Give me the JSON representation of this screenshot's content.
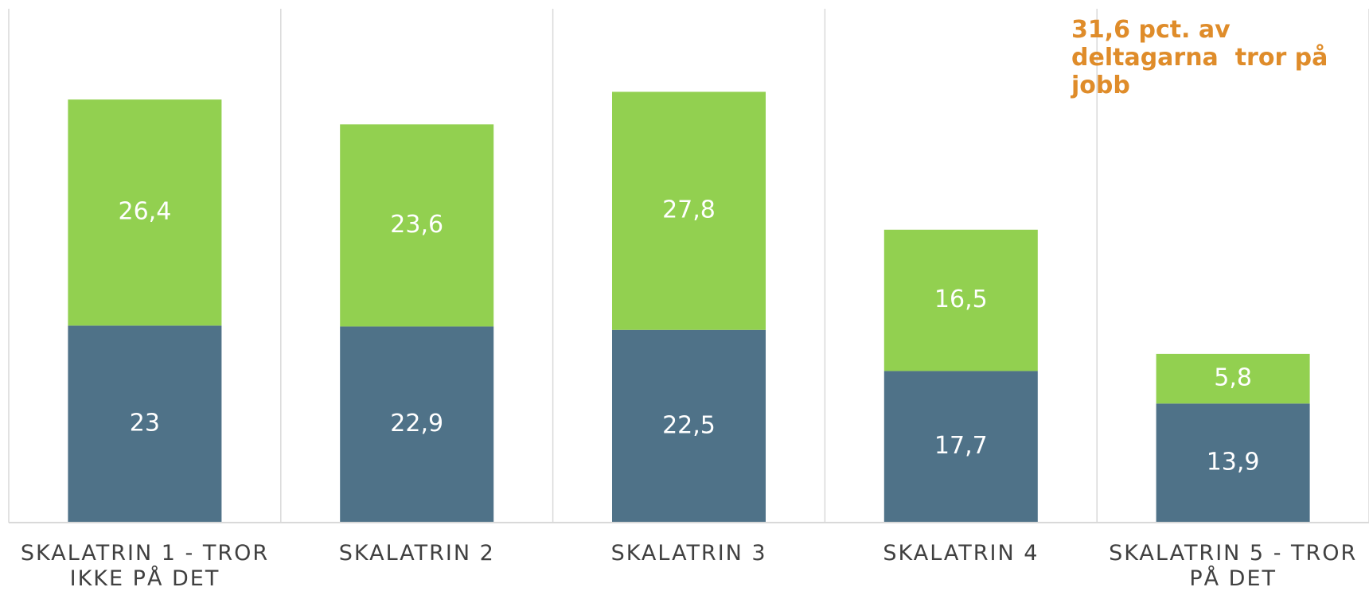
{
  "chart_data": {
    "type": "stacked_bar",
    "categories": [
      "SKALATRIN 1 - TROR IKKE PÅ DET",
      "SKALATRIN 2",
      "SKALATRIN 3",
      "SKALATRIN 4",
      "SKALATRIN 5 - TROR PÅ DET"
    ],
    "series": [
      {
        "color": "#4f7288",
        "values": [
          23,
          22.9,
          22.5,
          17.7,
          13.9
        ],
        "value_labels": [
          "23",
          "22,9",
          "22,5",
          "17,7",
          "13,9"
        ]
      },
      {
        "color": "#92d050",
        "values": [
          26.4,
          23.6,
          27.8,
          16.5,
          5.8
        ],
        "value_labels": [
          "26,4",
          "23,6",
          "27,8",
          "16,5",
          "5,8"
        ]
      }
    ],
    "ylim": [
      0,
      60
    ],
    "annotation": "31,6 pct. av deltagarna  tror på jobb"
  }
}
